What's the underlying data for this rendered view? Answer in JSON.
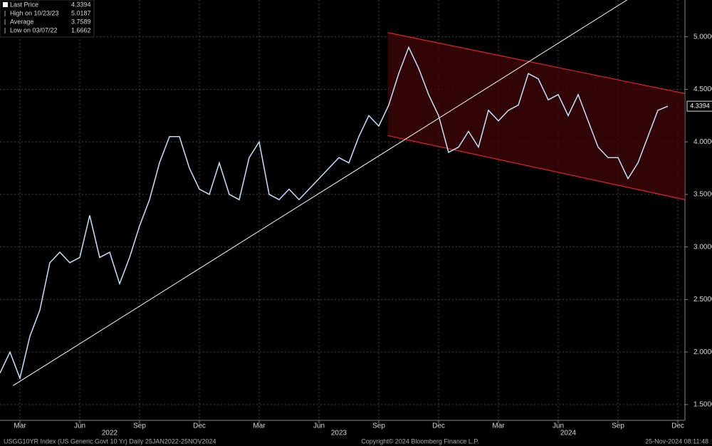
{
  "chart_data": {
    "type": "line",
    "categories": [
      null,
      null,
      "Mar",
      null,
      null,
      null,
      null,
      null,
      "Jun",
      null,
      null,
      null,
      null,
      null,
      "Sep",
      null,
      null,
      null,
      null,
      null,
      "Dec",
      null,
      null,
      null,
      null,
      null,
      "Mar",
      null,
      null,
      null,
      null,
      null,
      "Jun",
      null,
      null,
      null,
      null,
      null,
      "Sep",
      null,
      null,
      null,
      null,
      null,
      "Dec",
      null,
      null,
      null,
      null,
      null,
      "Mar",
      null,
      null,
      null,
      null,
      null,
      "Jun",
      null,
      null,
      null,
      null,
      null,
      "Sep",
      null,
      null,
      null,
      null,
      null,
      "Dec"
    ],
    "year_labels": [
      "2022",
      "2023",
      "2024"
    ],
    "series": [
      {
        "name": "Last Price",
        "color": "#9cc3ec",
        "values": [
          1.8,
          2.0,
          1.75,
          2.15,
          2.4,
          2.85,
          2.95,
          2.85,
          2.9,
          3.3,
          2.9,
          2.95,
          2.65,
          2.9,
          3.2,
          3.45,
          3.8,
          4.05,
          4.05,
          3.75,
          3.55,
          3.5,
          3.8,
          3.5,
          3.45,
          3.85,
          4.0,
          3.5,
          3.45,
          3.55,
          3.45,
          3.55,
          3.65,
          3.75,
          3.85,
          3.8,
          4.05,
          4.25,
          4.15,
          4.35,
          4.65,
          4.9,
          4.7,
          4.45,
          4.25,
          3.9,
          3.95,
          4.1,
          3.95,
          4.3,
          4.2,
          4.3,
          4.35,
          4.65,
          4.6,
          4.4,
          4.45,
          4.25,
          4.45,
          4.2,
          3.95,
          3.85,
          3.85,
          3.65,
          3.8,
          4.05,
          4.3,
          4.3394,
          null
        ]
      }
    ],
    "ylim": [
      1.35,
      5.35
    ],
    "yticks": [
      {
        "value": 1.5,
        "label": "1.5000"
      },
      {
        "value": 2.0,
        "label": "2.0000"
      },
      {
        "value": 2.5,
        "label": "2.5000"
      },
      {
        "value": 3.0,
        "label": "3.0000"
      },
      {
        "value": 3.5,
        "label": "3.5000"
      },
      {
        "value": 4.0,
        "label": "4.0000"
      },
      {
        "value": 4.5,
        "label": "4.5000"
      },
      {
        "value": 5.0,
        "label": "5.0000"
      }
    ],
    "grid": true,
    "legend": [
      {
        "label": "Last Price",
        "value": "4.3394"
      },
      {
        "label": "High on 10/23/23",
        "value": "5.0187"
      },
      {
        "label": "Average",
        "value": "3.7589"
      },
      {
        "label": "Low on 03/07/22",
        "value": "1.6662"
      }
    ],
    "last_price_label": "4.3394",
    "trendline": {
      "x": [
        1.3,
        62.9
      ],
      "y": [
        1.68,
        5.35
      ],
      "color": "#ffffff"
    },
    "channel": {
      "x": [
        38.9,
        68.7
      ],
      "top": [
        5.04,
        4.46
      ],
      "bottom": [
        4.06,
        3.45
      ],
      "color": "#e0242a",
      "fill": "#3a0606"
    },
    "footer": [
      "USGG10YR Index (US Generic Govt 10 Yr)  Daily 25JAN2022-25NOV2024",
      "Copyright© 2024 Bloomberg Finance L.P.",
      "25-Nov-2024 08:11:48"
    ]
  }
}
